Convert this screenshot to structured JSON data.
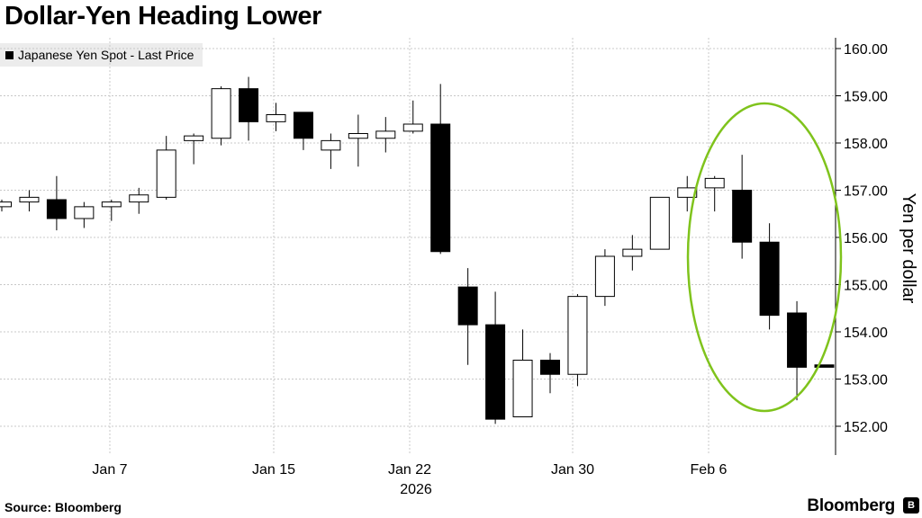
{
  "title": "Dollar-Yen Heading Lower",
  "legend": {
    "label": "Japanese Yen Spot - Last Price"
  },
  "footer": {
    "source": "Source:  Bloomberg",
    "brand": "Bloomberg",
    "brand_icon_letter": "B"
  },
  "colors": {
    "up_fill": "#ffffff",
    "down_fill": "#000000",
    "annotation": "#7fc31c",
    "grid": "#c8c8c8"
  },
  "chart_data": {
    "type": "candlestick",
    "ylabel": "Yen per dollar",
    "ylim": [
      151.7,
      160.2
    ],
    "y_ticks": [
      "152.00",
      "153.00",
      "154.00",
      "155.00",
      "156.00",
      "157.00",
      "158.00",
      "159.00",
      "160.00"
    ],
    "x_ticks": [
      "Jan 7",
      "Jan 15",
      "Jan 22",
      "Jan 30",
      "Feb 6"
    ],
    "x_ticks_sublabel": "2026",
    "grid": true,
    "legend_position": "top-left",
    "annotation": "circle around the last six sessions",
    "candles": [
      {
        "o": 156.65,
        "h": 156.8,
        "l": 156.55,
        "c": 156.75
      },
      {
        "o": 156.75,
        "h": 157.0,
        "l": 156.55,
        "c": 156.85
      },
      {
        "o": 156.8,
        "h": 157.3,
        "l": 156.15,
        "c": 156.4
      },
      {
        "o": 156.4,
        "h": 156.75,
        "l": 156.2,
        "c": 156.65
      },
      {
        "o": 156.65,
        "h": 156.8,
        "l": 156.35,
        "c": 156.75
      },
      {
        "o": 156.75,
        "h": 157.05,
        "l": 156.5,
        "c": 156.9
      },
      {
        "o": 156.85,
        "h": 158.15,
        "l": 156.8,
        "c": 157.85
      },
      {
        "o": 158.05,
        "h": 158.2,
        "l": 157.55,
        "c": 158.15
      },
      {
        "o": 158.1,
        "h": 159.2,
        "l": 157.95,
        "c": 159.15
      },
      {
        "o": 159.15,
        "h": 159.4,
        "l": 158.05,
        "c": 158.45
      },
      {
        "o": 158.45,
        "h": 158.85,
        "l": 158.25,
        "c": 158.6
      },
      {
        "o": 158.65,
        "h": 158.65,
        "l": 157.85,
        "c": 158.1
      },
      {
        "o": 157.85,
        "h": 158.2,
        "l": 157.45,
        "c": 158.05
      },
      {
        "o": 158.1,
        "h": 158.6,
        "l": 157.5,
        "c": 158.2
      },
      {
        "o": 158.1,
        "h": 158.55,
        "l": 157.8,
        "c": 158.25
      },
      {
        "o": 158.25,
        "h": 158.9,
        "l": 158.2,
        "c": 158.4
      },
      {
        "o": 158.4,
        "h": 159.25,
        "l": 155.65,
        "c": 155.7
      },
      {
        "o": 154.95,
        "h": 155.35,
        "l": 153.3,
        "c": 154.15
      },
      {
        "o": 154.15,
        "h": 154.85,
        "l": 152.05,
        "c": 152.15
      },
      {
        "o": 152.2,
        "h": 154.05,
        "l": 152.2,
        "c": 153.4
      },
      {
        "o": 153.4,
        "h": 153.55,
        "l": 152.7,
        "c": 153.1
      },
      {
        "o": 153.1,
        "h": 154.8,
        "l": 152.85,
        "c": 154.75
      },
      {
        "o": 154.75,
        "h": 155.75,
        "l": 154.55,
        "c": 155.6
      },
      {
        "o": 155.6,
        "h": 156.05,
        "l": 155.3,
        "c": 155.75
      },
      {
        "o": 155.75,
        "h": 156.85,
        "l": 155.75,
        "c": 156.85
      },
      {
        "o": 156.85,
        "h": 157.3,
        "l": 156.55,
        "c": 157.05
      },
      {
        "o": 157.05,
        "h": 157.3,
        "l": 156.55,
        "c": 157.25
      },
      {
        "o": 157.0,
        "h": 157.75,
        "l": 155.55,
        "c": 155.9
      },
      {
        "o": 155.9,
        "h": 156.3,
        "l": 154.05,
        "c": 154.35
      },
      {
        "o": 154.4,
        "h": 154.65,
        "l": 152.55,
        "c": 153.25
      },
      {
        "o": 153.3,
        "h": 153.3,
        "l": 153.25,
        "c": 153.25
      }
    ]
  }
}
